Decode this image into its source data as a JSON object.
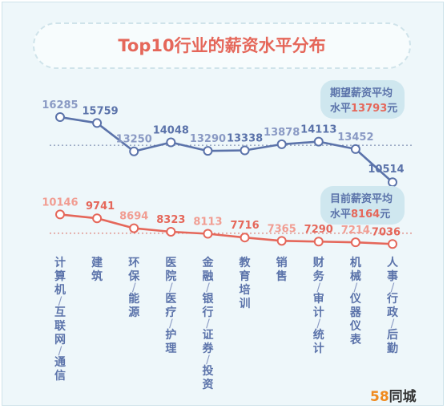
{
  "title": "Top10行业的薪资水平分布",
  "brand": {
    "mark": "58",
    "name": "同城"
  },
  "colors": {
    "expected": "#5b73aa",
    "current": "#e5675a",
    "current_light": "#f19d92",
    "expected_light": "#8a9ac4",
    "label_bg": "#cfe7ef"
  },
  "chart_data": {
    "type": "line",
    "title": "Top10行业的薪资水平分布",
    "categories": [
      "计算机/互联网/通信",
      "建筑",
      "环保/能源",
      "医院/医疗/护理",
      "金融/银行/证券/投资",
      "教育培训",
      "销售",
      "财务/审计/统计",
      "机械/仪器仪表",
      "人事/行政/后勤"
    ],
    "series": [
      {
        "name": "期望薪资",
        "values": [
          16285,
          15759,
          13250,
          14048,
          13290,
          13338,
          13878,
          14113,
          13452,
          10514
        ],
        "average_label": [
          "期望薪资平均",
          "水平",
          "13793",
          "元"
        ],
        "average": 13793
      },
      {
        "name": "目前薪资",
        "values": [
          10146,
          9741,
          8694,
          8323,
          8113,
          7716,
          7365,
          7290,
          7214,
          7036
        ],
        "average_label": [
          "目前薪资平均",
          "水平",
          "8164",
          "元"
        ],
        "average": 8164
      }
    ],
    "grid": false,
    "legend": "none"
  }
}
